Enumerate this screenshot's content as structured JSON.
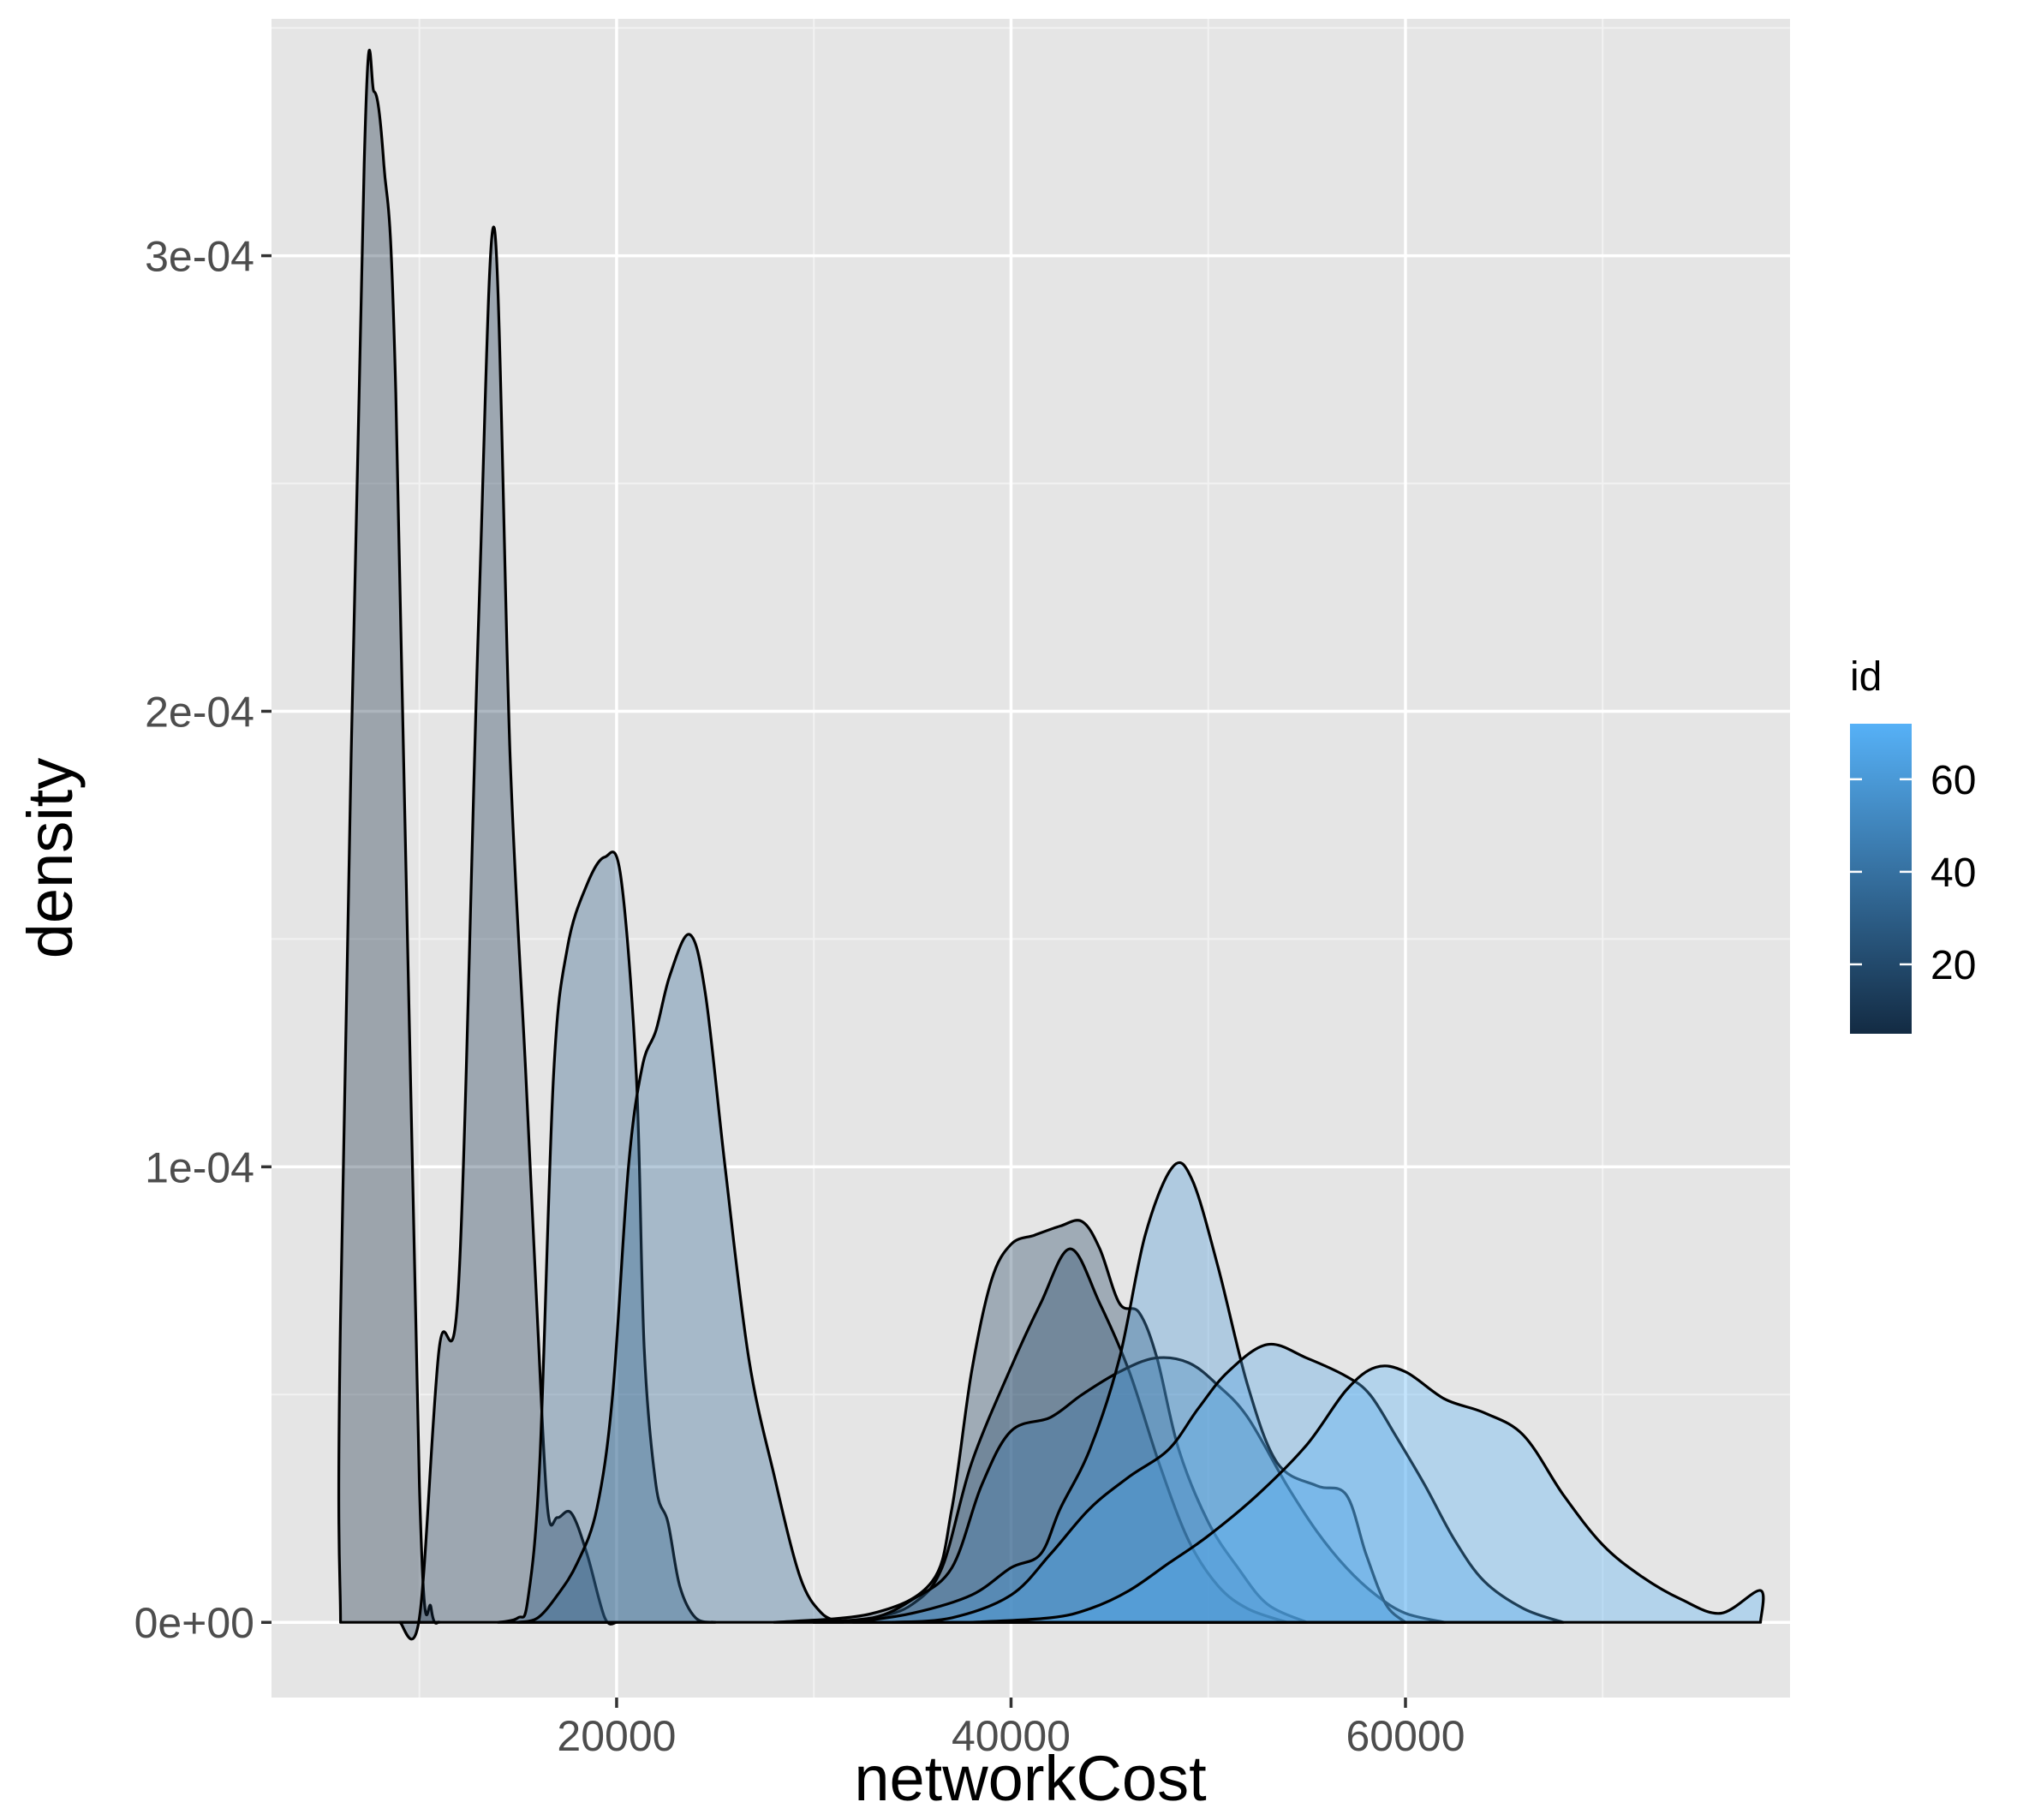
{
  "chart_data": {
    "type": "area",
    "subtype": "overlapping density curves",
    "xlabel": "networkCost",
    "ylabel": "density",
    "xlim": [
      2500,
      79500
    ],
    "ylim": [
      -1.65e-05,
      0.000352
    ],
    "x_ticks": [
      20000,
      40000,
      60000
    ],
    "x_tick_labels": [
      "20000",
      "40000",
      "60000"
    ],
    "y_ticks": [
      0,
      0.0001,
      0.0002,
      0.0003
    ],
    "y_tick_labels": [
      "0e+00",
      "1e-04",
      "2e-04",
      "3e-04"
    ],
    "grid": true,
    "legend": {
      "title": "id",
      "position": "right",
      "type": "colorbar",
      "range": [
        5,
        72
      ],
      "breaks": [
        20,
        40,
        60
      ],
      "break_labels": [
        "20",
        "40",
        "60"
      ],
      "low_color": "#132B43",
      "high_color": "#56B1F7"
    },
    "series": [
      {
        "id": 5,
        "fill_alpha": 0.35,
        "points": [
          [
            6000,
            0
          ],
          [
            6000,
            6.7e-05
          ],
          [
            7200,
            0.00032
          ],
          [
            7700,
            0.000336
          ],
          [
            8200,
            0.00032
          ],
          [
            8800,
            0.00027
          ],
          [
            10000,
            3e-05
          ],
          [
            10600,
            3e-06
          ],
          [
            11000,
            0
          ]
        ]
      },
      {
        "id": 10,
        "fill_alpha": 0.35,
        "points": [
          [
            9000,
            0
          ],
          [
            10000,
            1e-06
          ],
          [
            11000,
            6e-05
          ],
          [
            12000,
            7.5e-05
          ],
          [
            13000,
            0.00022
          ],
          [
            13800,
            0.000306
          ],
          [
            14600,
            0.00019
          ],
          [
            15400,
            0.00012
          ],
          [
            16000,
            6.5e-05
          ],
          [
            16500,
            2.5e-05
          ],
          [
            17000,
            2.3e-05
          ],
          [
            17700,
            2.4e-05
          ],
          [
            18500,
            1.5e-05
          ],
          [
            19400,
            1e-06
          ],
          [
            20000,
            0
          ]
        ]
      },
      {
        "id": 30,
        "fill_alpha": 0.35,
        "points": [
          [
            14000,
            0
          ],
          [
            15000,
            1e-06
          ],
          [
            15500,
            5e-06
          ],
          [
            16100,
            3.5e-05
          ],
          [
            16800,
            0.00012
          ],
          [
            17500,
            0.000148
          ],
          [
            18500,
            0.000162
          ],
          [
            19400,
            0.000168
          ],
          [
            20200,
            0.000164
          ],
          [
            21000,
            0.00012
          ],
          [
            21400,
            6e-05
          ],
          [
            22000,
            3e-05
          ],
          [
            22600,
            2.2e-05
          ],
          [
            23200,
            8e-06
          ],
          [
            24000,
            1e-06
          ],
          [
            25000,
            0
          ]
        ]
      },
      {
        "id": 35,
        "fill_alpha": 0.35,
        "points": [
          [
            15000,
            0
          ],
          [
            16000,
            1e-06
          ],
          [
            17000,
            6e-06
          ],
          [
            18000,
            1.3e-05
          ],
          [
            19000,
            2.5e-05
          ],
          [
            19800,
            5e-05
          ],
          [
            20600,
            0.0001
          ],
          [
            21300,
            0.000122
          ],
          [
            22000,
            0.00013
          ],
          [
            22700,
            0.000142
          ],
          [
            23700,
            0.000151
          ],
          [
            24500,
            0.000138
          ],
          [
            25500,
            0.0001
          ],
          [
            26700,
            5.8e-05
          ],
          [
            28000,
            3.2e-05
          ],
          [
            29300,
            1e-05
          ],
          [
            30400,
            2e-06
          ],
          [
            31500,
            0
          ]
        ]
      },
      {
        "id": 15,
        "fill_alpha": 0.35,
        "points": [
          [
            28000,
            0
          ],
          [
            33000,
            2e-06
          ],
          [
            36000,
            9e-06
          ],
          [
            37000,
            2.5e-05
          ],
          [
            38000,
            5.5e-05
          ],
          [
            39000,
            7.5e-05
          ],
          [
            40000,
            8.3e-05
          ],
          [
            41200,
            8.5e-05
          ],
          [
            42500,
            8.7e-05
          ],
          [
            43600,
            8.8e-05
          ],
          [
            44500,
            8.2e-05
          ],
          [
            45500,
            7e-05
          ],
          [
            46500,
            6.8e-05
          ],
          [
            47400,
            5.8e-05
          ],
          [
            48500,
            3.8e-05
          ],
          [
            50000,
            2.2e-05
          ],
          [
            51500,
            1.2e-05
          ],
          [
            53000,
            4e-06
          ],
          [
            55000,
            0
          ]
        ]
      },
      {
        "id": 20,
        "fill_alpha": 0.35,
        "points": [
          [
            30000,
            0
          ],
          [
            33000,
            1e-06
          ],
          [
            35000,
            4e-06
          ],
          [
            36500,
            1.2e-05
          ],
          [
            38000,
            3.5e-05
          ],
          [
            40000,
            5.6e-05
          ],
          [
            41500,
            7e-05
          ],
          [
            43000,
            8.2e-05
          ],
          [
            44500,
            7e-05
          ],
          [
            46000,
            5.5e-05
          ],
          [
            47500,
            3.5e-05
          ],
          [
            49000,
            1.8e-05
          ],
          [
            50500,
            8e-06
          ],
          [
            52000,
            3e-06
          ],
          [
            54000,
            0
          ]
        ]
      },
      {
        "id": 45,
        "fill_alpha": 0.35,
        "points": [
          [
            30000,
            0
          ],
          [
            33000,
            1e-06
          ],
          [
            35000,
            5e-06
          ],
          [
            37000,
            1.2e-05
          ],
          [
            38500,
            3e-05
          ],
          [
            40000,
            4.2e-05
          ],
          [
            42000,
            4.5e-05
          ],
          [
            43600,
            5e-05
          ],
          [
            45500,
            5.5e-05
          ],
          [
            47300,
            5.8e-05
          ],
          [
            49000,
            5.7e-05
          ],
          [
            50500,
            5.2e-05
          ],
          [
            52000,
            4.5e-05
          ],
          [
            54000,
            3e-05
          ],
          [
            55500,
            2e-05
          ],
          [
            57000,
            1.2e-05
          ],
          [
            58500,
            6e-06
          ],
          [
            60000,
            2e-06
          ],
          [
            62000,
            0
          ]
        ]
      },
      {
        "id": 60,
        "fill_alpha": 0.35,
        "points": [
          [
            32000,
            0
          ],
          [
            35000,
            2e-06
          ],
          [
            38000,
            6e-06
          ],
          [
            40000,
            1.2e-05
          ],
          [
            41500,
            1.5e-05
          ],
          [
            42500,
            2.5e-05
          ],
          [
            44000,
            3.8e-05
          ],
          [
            45500,
            5.8e-05
          ],
          [
            46800,
            8.5e-05
          ],
          [
            48200,
            0.0001
          ],
          [
            49200,
            9.7e-05
          ],
          [
            50500,
            7.8e-05
          ],
          [
            52000,
            5.2e-05
          ],
          [
            53500,
            3.5e-05
          ],
          [
            55500,
            3e-05
          ],
          [
            57000,
            2.8e-05
          ],
          [
            58000,
            1.5e-05
          ],
          [
            59000,
            4e-06
          ],
          [
            60000,
            0
          ]
        ]
      },
      {
        "id": 65,
        "fill_alpha": 0.35,
        "points": [
          [
            34000,
            0
          ],
          [
            37000,
            1e-06
          ],
          [
            40000,
            6e-06
          ],
          [
            42000,
            1.5e-05
          ],
          [
            44000,
            2.5e-05
          ],
          [
            46000,
            3.2e-05
          ],
          [
            48000,
            3.8e-05
          ],
          [
            49500,
            4.7e-05
          ],
          [
            51000,
            5.5e-05
          ],
          [
            53000,
            6.1e-05
          ],
          [
            55000,
            5.8e-05
          ],
          [
            57000,
            5.4e-05
          ],
          [
            58200,
            5e-05
          ],
          [
            59500,
            4.1e-05
          ],
          [
            61000,
            3e-05
          ],
          [
            62500,
            1.8e-05
          ],
          [
            64000,
            9e-06
          ],
          [
            66000,
            3e-06
          ],
          [
            68000,
            0
          ]
        ]
      },
      {
        "id": 72,
        "fill_alpha": 0.35,
        "points": [
          [
            38000,
            0
          ],
          [
            42000,
            1e-06
          ],
          [
            44000,
            3e-06
          ],
          [
            46000,
            7e-06
          ],
          [
            48000,
            1.3e-05
          ],
          [
            50000,
            1.9e-05
          ],
          [
            52500,
            2.8e-05
          ],
          [
            55000,
            3.9e-05
          ],
          [
            57000,
            5.1e-05
          ],
          [
            58500,
            5.6e-05
          ],
          [
            60000,
            5.5e-05
          ],
          [
            62000,
            4.9e-05
          ],
          [
            64000,
            4.6e-05
          ],
          [
            66000,
            4.1e-05
          ],
          [
            68000,
            2.8e-05
          ],
          [
            70000,
            1.7e-05
          ],
          [
            72000,
            1e-05
          ],
          [
            74000,
            5e-06
          ],
          [
            76000,
            2e-06
          ],
          [
            78000,
            7e-06
          ],
          [
            78000,
            0
          ]
        ]
      }
    ]
  }
}
